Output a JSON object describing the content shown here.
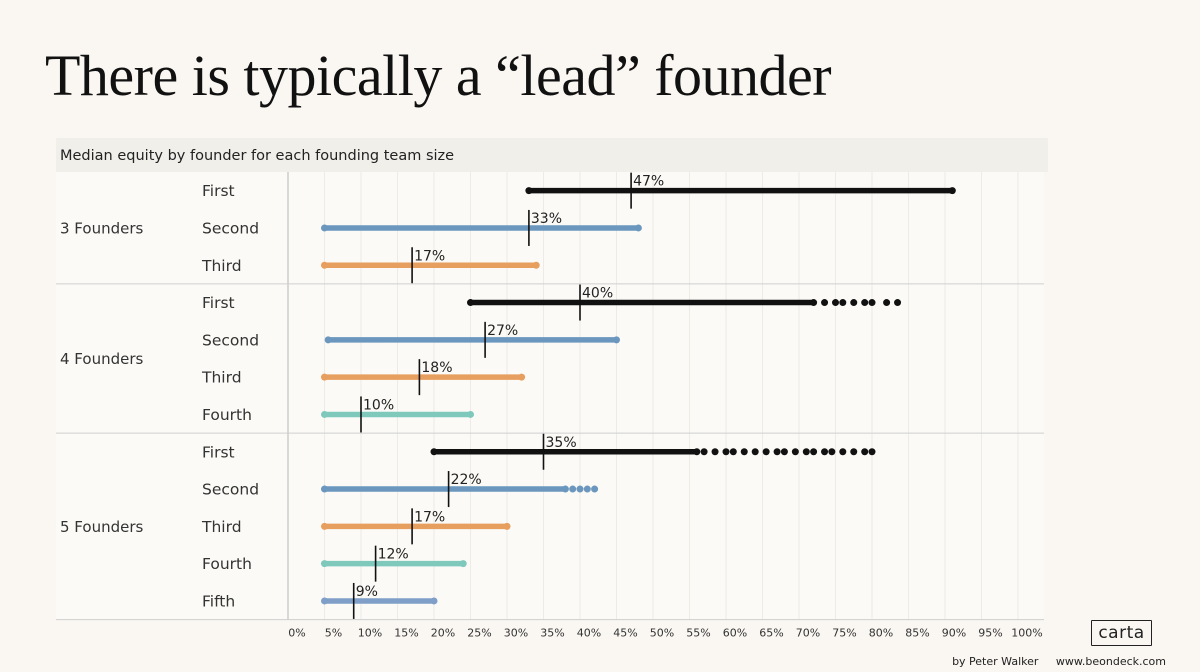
{
  "title": "There is typically a “lead” founder",
  "chart_data": {
    "type": "scatter",
    "title": "Median equity by founder for each founding team size",
    "xlabel": "",
    "ylabel": "",
    "xlim": [
      0,
      100
    ],
    "x_ticks": [
      "0%",
      "5%",
      "10%",
      "15%",
      "20%",
      "25%",
      "30%",
      "35%",
      "40%",
      "45%",
      "50%",
      "55%",
      "60%",
      "65%",
      "70%",
      "75%",
      "80%",
      "85%",
      "90%",
      "95%",
      "100%"
    ],
    "grid": true,
    "colors": {
      "First": "#111111",
      "Second": "#6b97bf",
      "Third": "#e79f5f",
      "Fourth": "#7ec9bb",
      "Fifth": "#7f9ec8"
    },
    "groups": [
      {
        "label": "3 Founders",
        "rows": [
          {
            "founder": "First",
            "min": 33,
            "max": 91,
            "outliers": [],
            "median": 47,
            "median_label": "47%"
          },
          {
            "founder": "Second",
            "min": 5,
            "max": 48,
            "outliers": [],
            "median": 33,
            "median_label": "33%"
          },
          {
            "founder": "Third",
            "min": 5,
            "max": 34,
            "outliers": [],
            "median": 17,
            "median_label": "17%"
          }
        ]
      },
      {
        "label": "4 Founders",
        "rows": [
          {
            "founder": "First",
            "min": 25,
            "max": 72,
            "outliers": [
              73.5,
              75,
              76,
              77.5,
              79,
              80,
              82,
              83.5
            ],
            "median": 40,
            "median_label": "40%"
          },
          {
            "founder": "Second",
            "min": 5.5,
            "max": 45,
            "outliers": [],
            "median": 27,
            "median_label": "27%"
          },
          {
            "founder": "Third",
            "min": 5,
            "max": 32,
            "outliers": [],
            "median": 18,
            "median_label": "18%"
          },
          {
            "founder": "Fourth",
            "min": 5,
            "max": 25,
            "outliers": [],
            "median": 10,
            "median_label": "10%"
          }
        ]
      },
      {
        "label": "5 Founders",
        "rows": [
          {
            "founder": "First",
            "min": 20,
            "max": 56,
            "outliers": [
              57,
              58.5,
              60,
              61,
              62.5,
              64,
              65.5,
              67,
              68,
              69.5,
              71,
              72,
              73.5,
              74.5,
              76,
              77.5,
              79,
              80
            ],
            "median": 35,
            "median_label": "35%"
          },
          {
            "founder": "Second",
            "min": 5,
            "max": 38,
            "outliers": [
              39,
              40,
              41,
              42
            ],
            "median": 22,
            "median_label": "22%"
          },
          {
            "founder": "Third",
            "min": 5,
            "max": 30,
            "outliers": [],
            "median": 17,
            "median_label": "17%"
          },
          {
            "founder": "Fourth",
            "min": 5,
            "max": 24,
            "outliers": [],
            "median": 12,
            "median_label": "12%"
          },
          {
            "founder": "Fifth",
            "min": 5,
            "max": 20,
            "outliers": [],
            "median": 9,
            "median_label": "9%"
          }
        ]
      }
    ]
  },
  "branding": {
    "logo_text": "carta",
    "author": "by Peter Walker",
    "website": "www.beondeck.com"
  }
}
